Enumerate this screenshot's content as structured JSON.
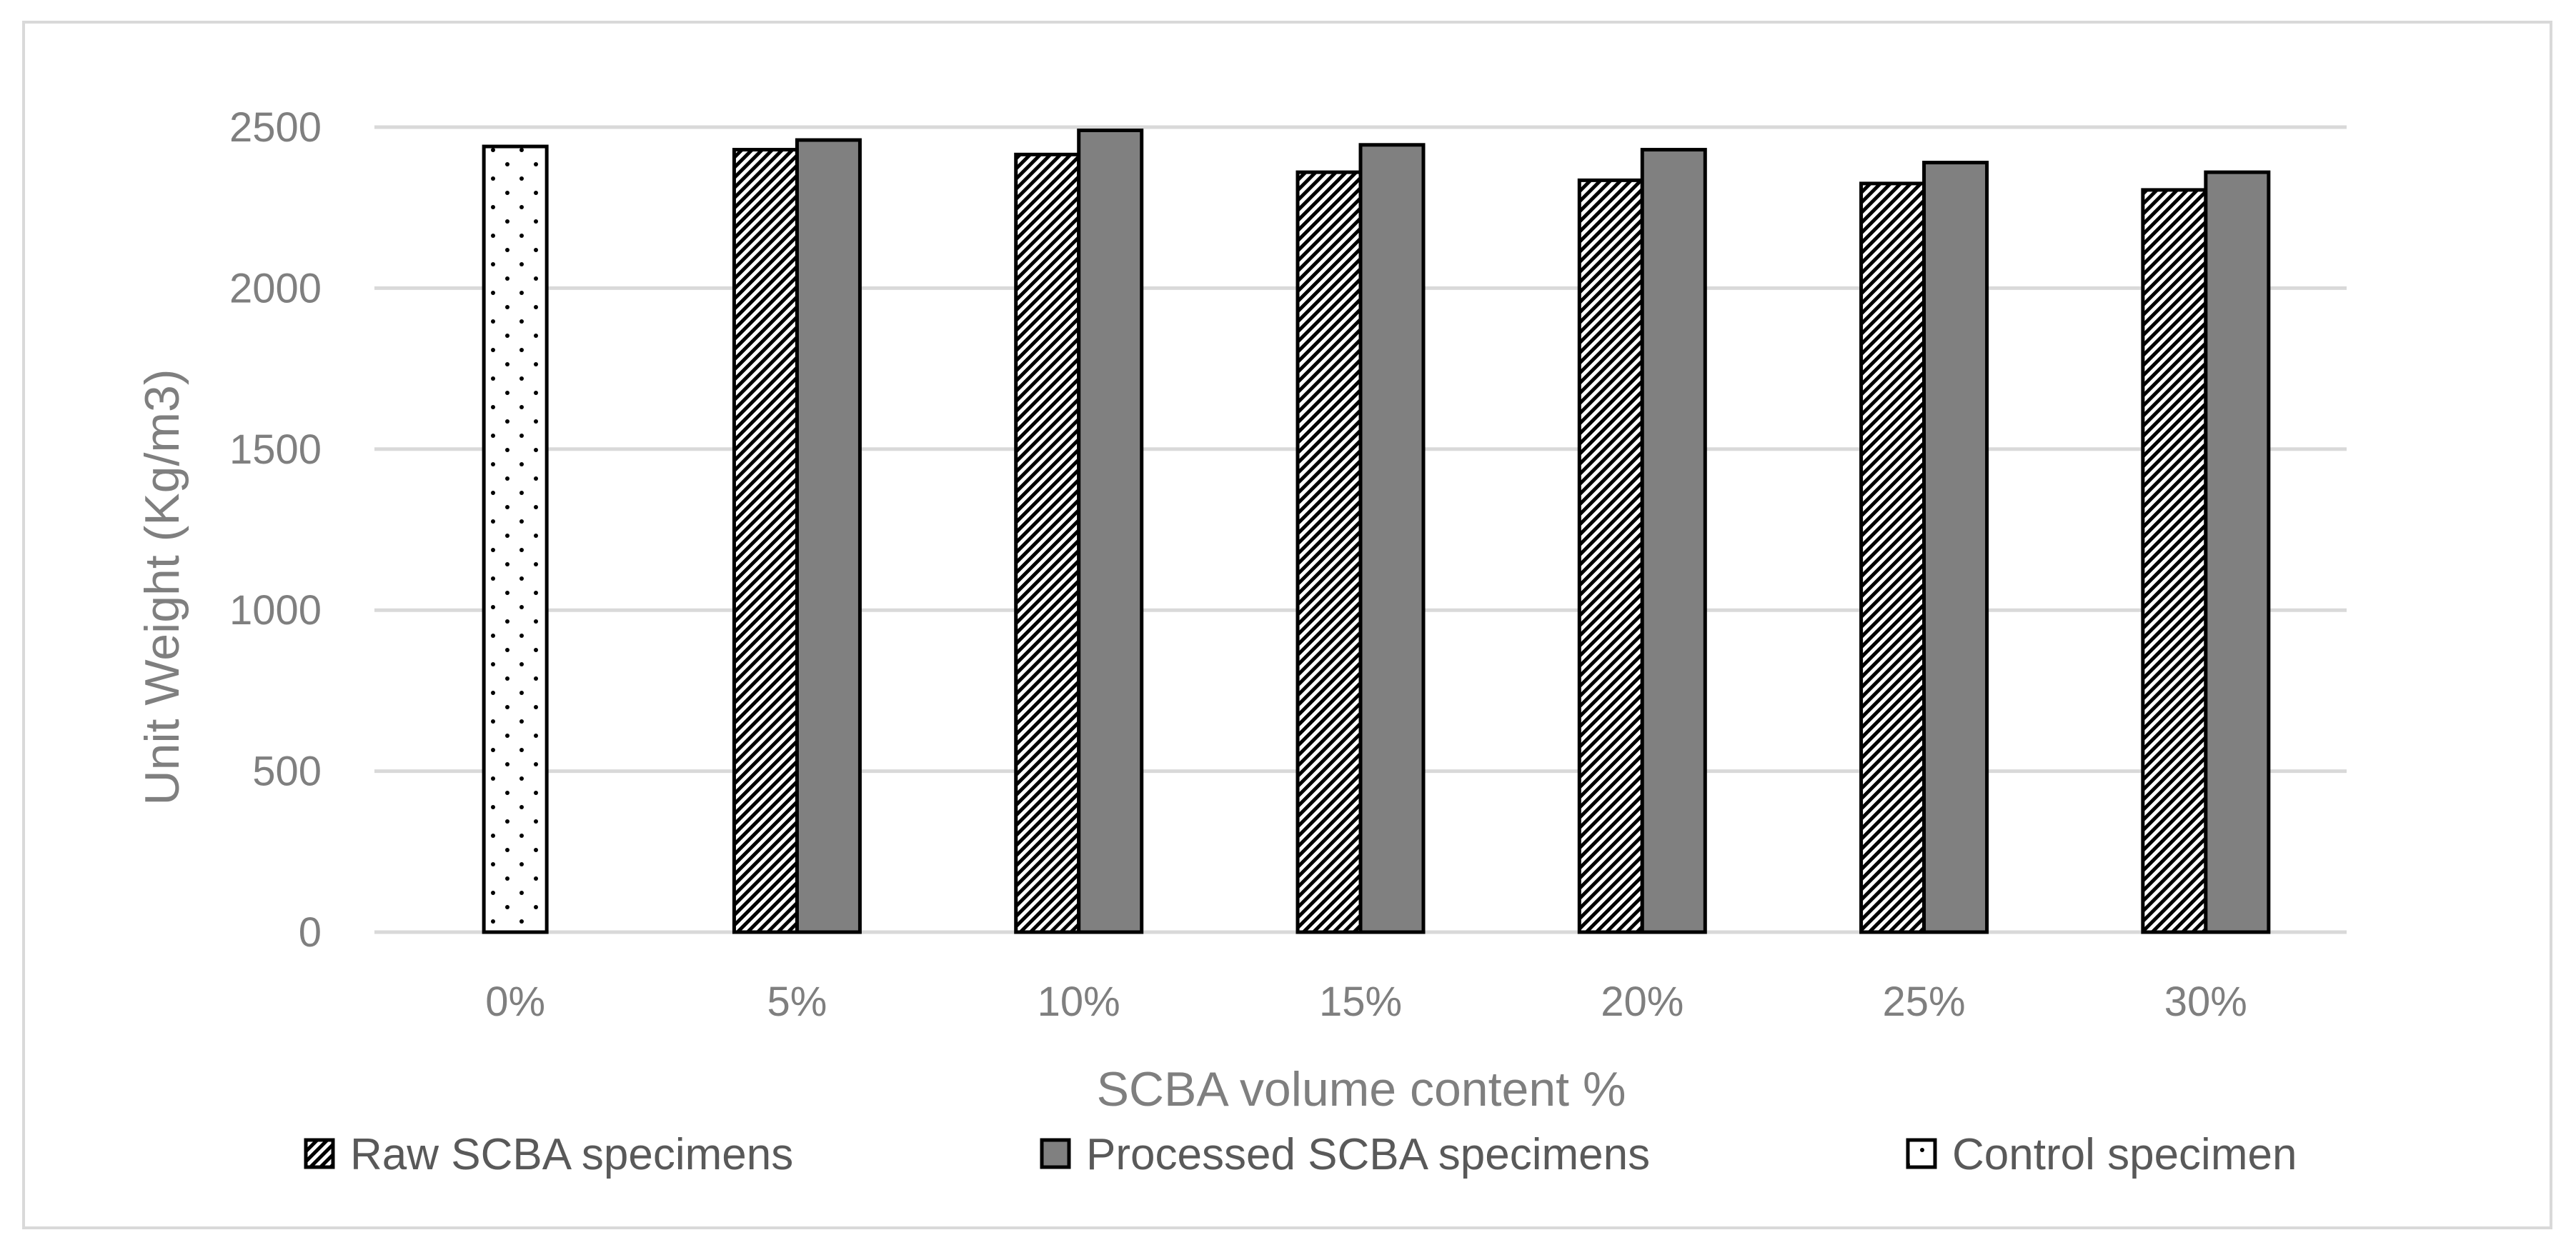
{
  "chart_data": {
    "type": "bar",
    "title": "",
    "xlabel": "SCBA volume content %",
    "ylabel": "Unit Weight (Kg/m3)",
    "ylim": [
      0,
      2500
    ],
    "yticks": [
      0,
      500,
      1000,
      1500,
      2000,
      2500
    ],
    "categories": [
      "0%",
      "5%",
      "10%",
      "15%",
      "20%",
      "25%",
      "30%"
    ],
    "grid": true,
    "legend_position": "bottom",
    "series": [
      {
        "name": "Raw SCBA specimens",
        "pattern": "diagonal-hatch",
        "color": "#000000",
        "values": [
          null,
          2430,
          2415,
          2360,
          2335,
          2325,
          2305
        ]
      },
      {
        "name": "Processed SCBA specimens",
        "pattern": "solid",
        "color": "#808080",
        "values": [
          null,
          2460,
          2490,
          2445,
          2430,
          2390,
          2360
        ]
      },
      {
        "name": "Control specimen",
        "pattern": "dots",
        "color": "#000000",
        "values": [
          2440,
          null,
          null,
          null,
          null,
          null,
          null
        ]
      }
    ]
  }
}
